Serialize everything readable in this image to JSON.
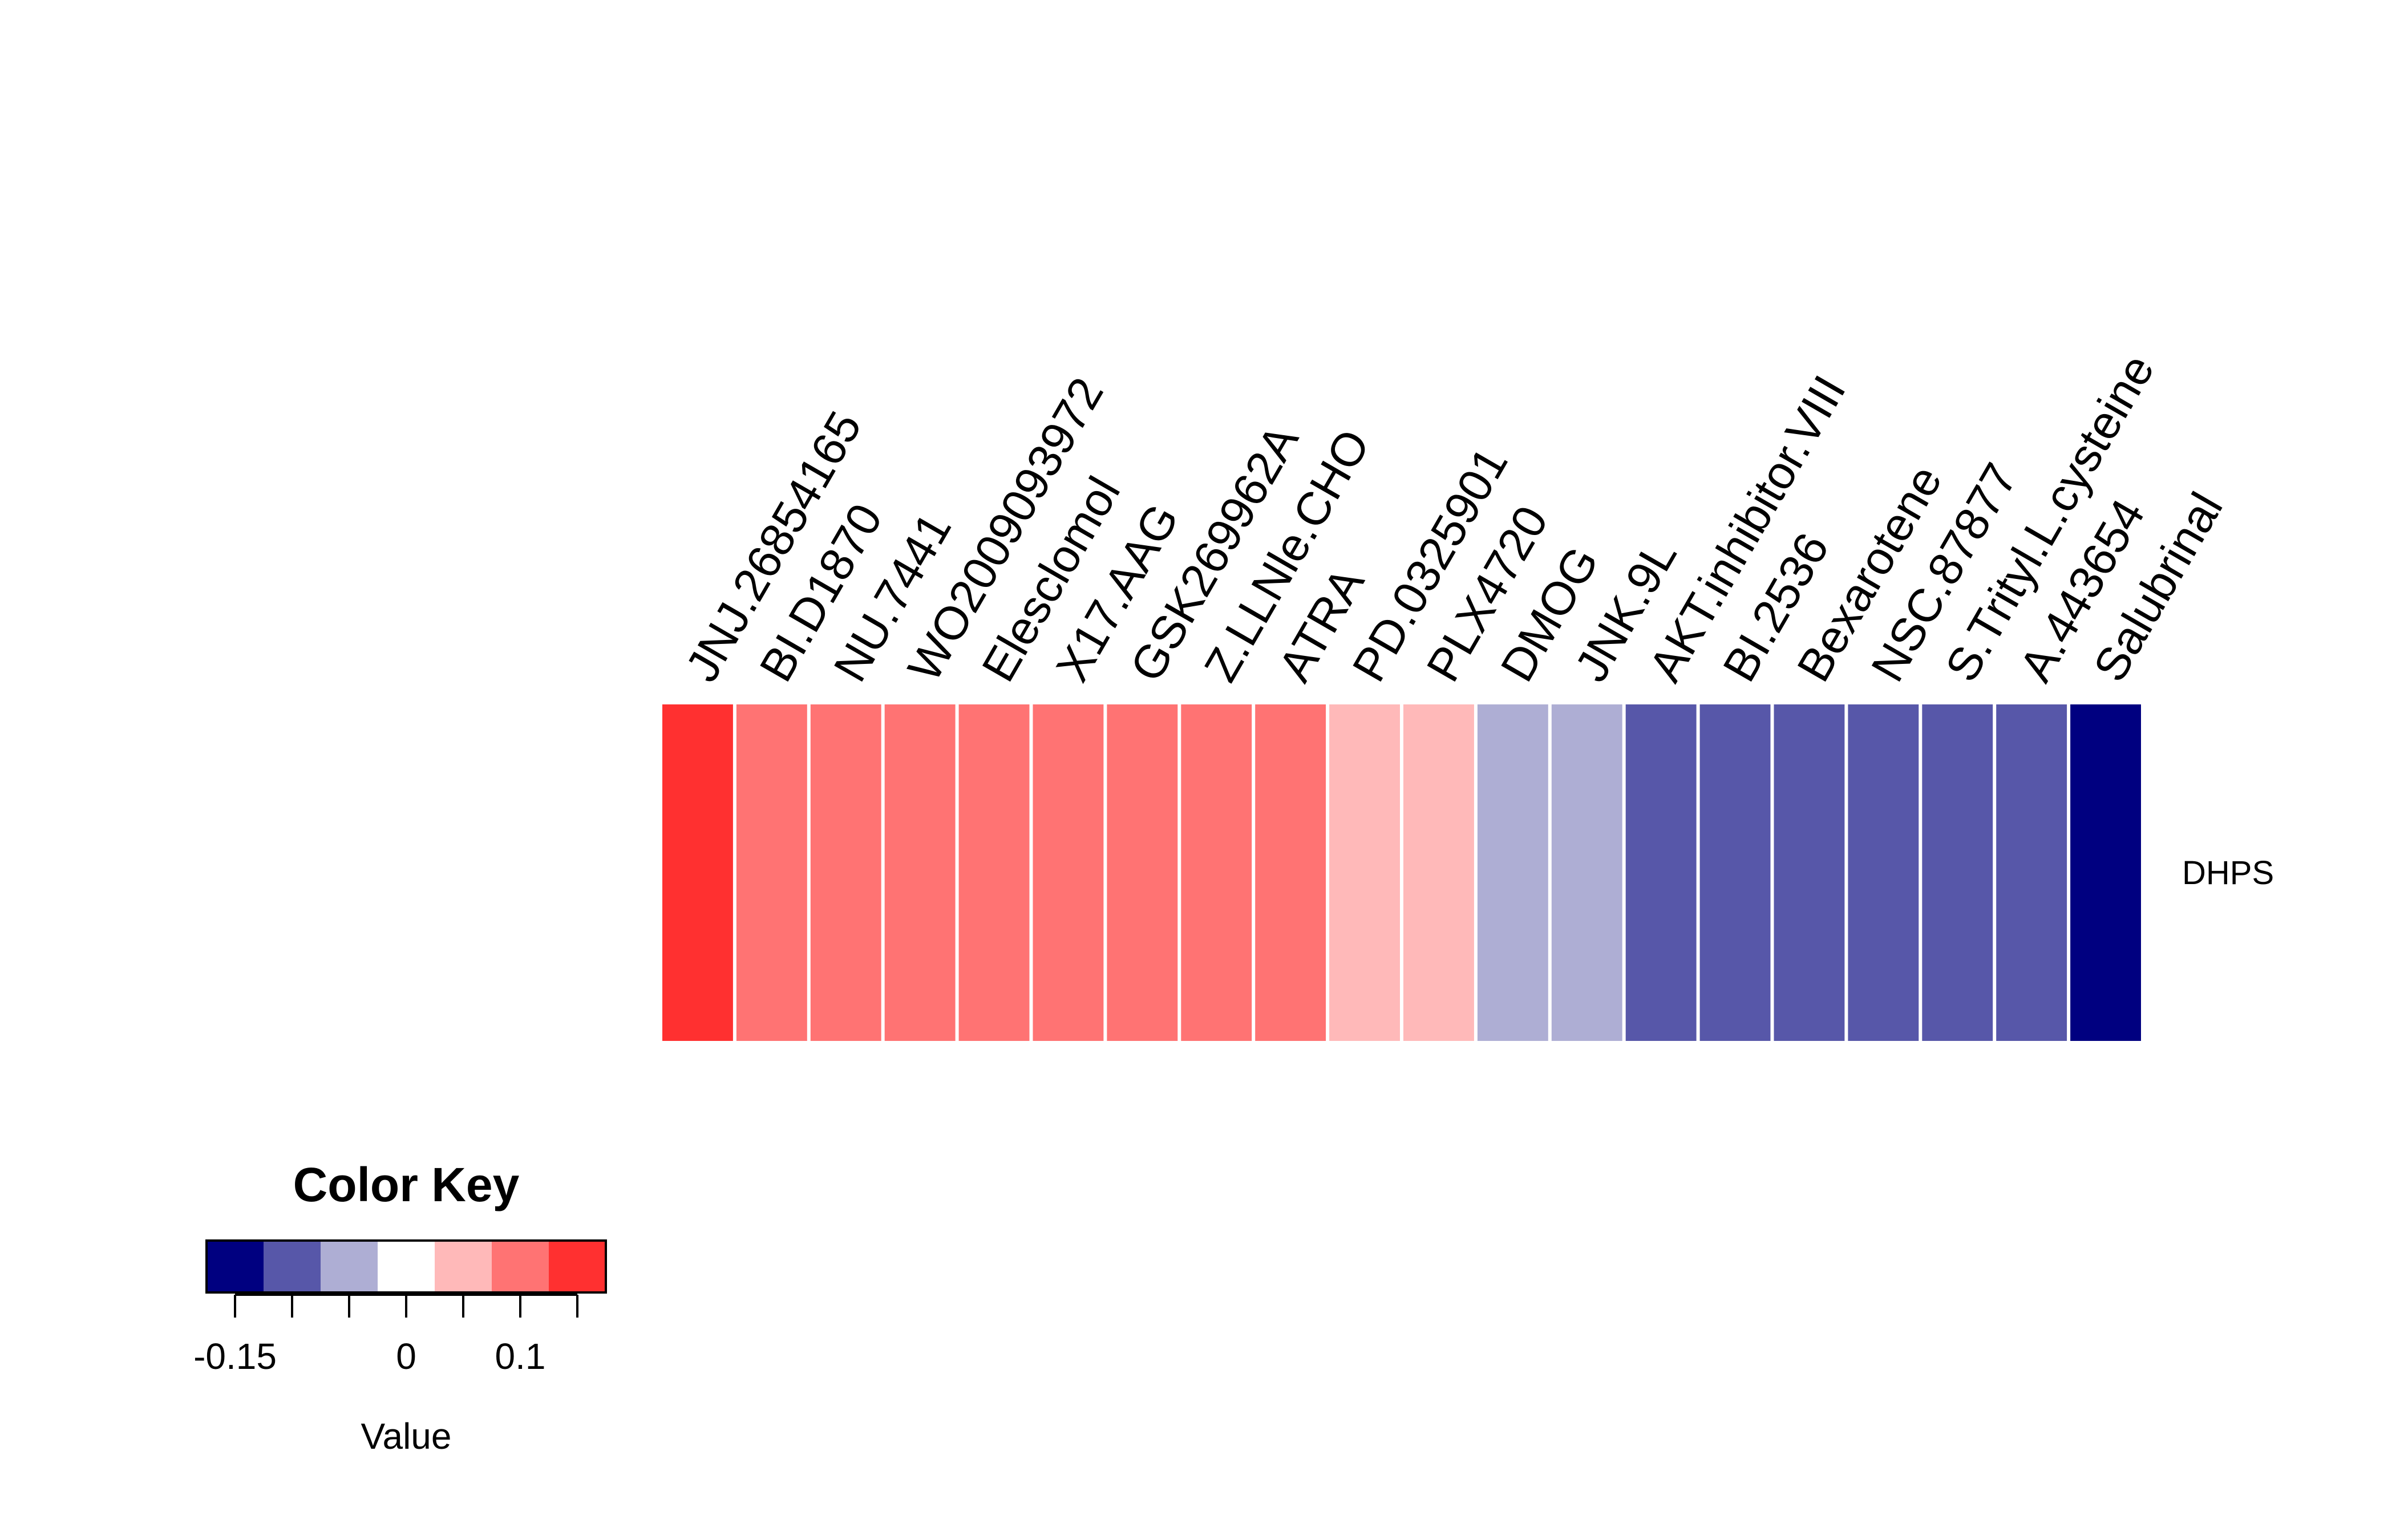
{
  "chart_data": {
    "type": "heatmap",
    "columns": [
      "JNJ.26854165",
      "BI.D1870",
      "NU.7441",
      "WO2009093972",
      "Elesclomol",
      "X17.AAG",
      "GSK269962A",
      "Z.LLNle.CHO",
      "ATRA",
      "PD.0325901",
      "PLX4720",
      "DMOG",
      "JNK.9L",
      "AKT.inhibitor.VIII",
      "BI.2536",
      "Bexarotene",
      "NSC.87877",
      "S.Trityl.L.cysteine",
      "A.443654",
      "Salubrinal"
    ],
    "rows": [
      "DHPS"
    ],
    "values": [
      [
        0.13,
        0.08,
        0.08,
        0.08,
        0.08,
        0.08,
        0.08,
        0.08,
        0.08,
        0.03,
        0.03,
        -0.05,
        -0.05,
        -0.1,
        -0.1,
        -0.1,
        -0.1,
        -0.1,
        -0.1,
        -0.16
      ]
    ],
    "color_key": {
      "title": "Color Key",
      "xlabel": "Value",
      "breaks": [
        -0.175,
        -0.125,
        -0.075,
        -0.025,
        0.025,
        0.075,
        0.125,
        0.175
      ],
      "colors": [
        "#000080",
        "#5757A9",
        "#AEAED4",
        "#FFFFFF",
        "#FFB9B9",
        "#FF7373",
        "#FF3030"
      ],
      "tick_values": [
        -0.15,
        -0.1,
        -0.05,
        0,
        0.05,
        0.1,
        0.15
      ],
      "tick_labels": [
        "-0.15",
        "",
        "",
        "0",
        "",
        "0.1",
        ""
      ]
    }
  }
}
